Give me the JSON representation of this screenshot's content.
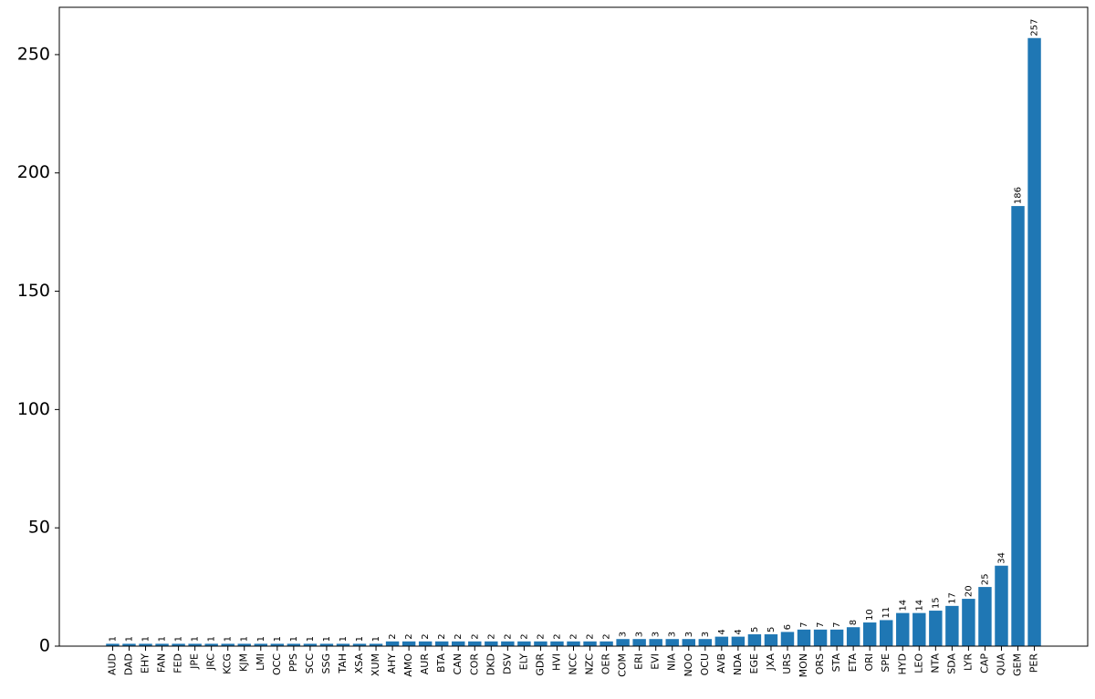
{
  "chart_data": {
    "type": "bar",
    "categories": [
      "AUD",
      "DAD",
      "EHY",
      "FAN",
      "FED",
      "JPE",
      "JRC",
      "KCG",
      "KJM",
      "LMI",
      "OCC",
      "PPS",
      "SCC",
      "SSG",
      "TAH",
      "XSA",
      "XUM",
      "AHY",
      "AMO",
      "AUR",
      "BTA",
      "CAN",
      "COR",
      "DKD",
      "DSV",
      "ELY",
      "GDR",
      "HVI",
      "NCC",
      "NZC",
      "OER",
      "COM",
      "ERI",
      "EVI",
      "NIA",
      "NOO",
      "OCU",
      "AVB",
      "NDA",
      "EGE",
      "JXA",
      "URS",
      "MON",
      "ORS",
      "STA",
      "ETA",
      "ORI",
      "SPE",
      "HYD",
      "LEO",
      "NTA",
      "SDA",
      "LYR",
      "CAP",
      "QUA",
      "GEM",
      "PER"
    ],
    "values": [
      1,
      1,
      1,
      1,
      1,
      1,
      1,
      1,
      1,
      1,
      1,
      1,
      1,
      1,
      1,
      1,
      1,
      2,
      2,
      2,
      2,
      2,
      2,
      2,
      2,
      2,
      2,
      2,
      2,
      2,
      2,
      3,
      3,
      3,
      3,
      3,
      3,
      4,
      4,
      5,
      5,
      6,
      7,
      7,
      7,
      8,
      10,
      11,
      14,
      14,
      15,
      17,
      20,
      25,
      34,
      186,
      257
    ],
    "color": "#1f77b4",
    "ylim": [
      0,
      270
    ],
    "yticks": [
      0,
      50,
      100,
      150,
      200,
      250
    ]
  }
}
